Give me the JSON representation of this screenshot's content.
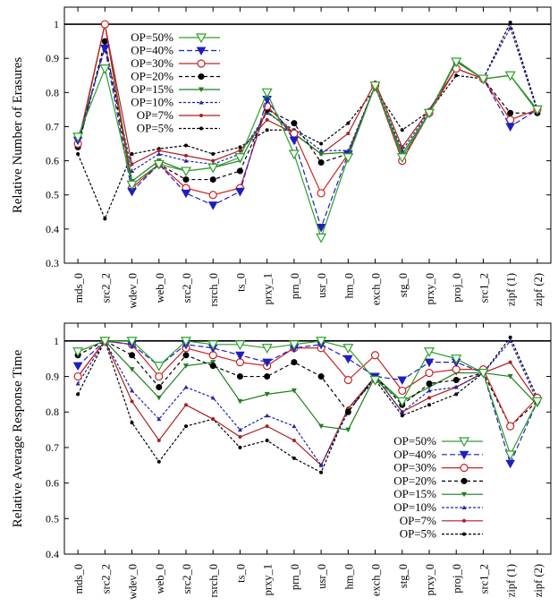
{
  "series_styles": [
    {
      "name": "OP=50%",
      "color": "#2ca02c",
      "dash": "",
      "marker": "triangle-down-open"
    },
    {
      "name": "OP=40%",
      "color": "#1f1fbf",
      "dash": "6,3",
      "marker": "triangle-down-filled"
    },
    {
      "name": "OP=30%",
      "color": "#cc2222",
      "dash": "",
      "marker": "circle-open"
    },
    {
      "name": "OP=20%",
      "color": "#000000",
      "dash": "4,3",
      "marker": "circle-filled"
    },
    {
      "name": "OP=15%",
      "color": "#1f7f1f",
      "dash": "",
      "marker": "triangle-down-small"
    },
    {
      "name": "OP=10%",
      "color": "#2222aa",
      "dash": "3,2",
      "marker": "triangle-small"
    },
    {
      "name": "OP=7%",
      "color": "#aa2222",
      "dash": "",
      "marker": "dot"
    },
    {
      "name": "OP=5%",
      "color": "#000000",
      "dash": "3,2",
      "marker": "dot"
    }
  ],
  "chart_data": [
    {
      "type": "line",
      "title": "",
      "ylabel": "Relative Number of Erasures",
      "xlabel": "",
      "ylim": [
        0.3,
        1.05
      ],
      "yticks": [
        "0.3",
        "0.4",
        "0.5",
        "0.6",
        "0.7",
        "0.8",
        "0.9",
        "1"
      ],
      "reference_line": 1.0,
      "grid": false,
      "legend_position": "top-left",
      "categories": [
        "mds_0",
        "src2_2",
        "wdev_0",
        "web_0",
        "src2_0",
        "rsrch_0",
        "ts_0",
        "prxy_1",
        "prn_0",
        "usr_0",
        "hm_0",
        "exch_0",
        "stg_0",
        "prxy_0",
        "proj_0",
        "src1_2",
        "zipf (1)",
        "zipf (2)"
      ],
      "series": [
        {
          "name": "OP=50%",
          "values": [
            0.67,
            0.87,
            0.53,
            0.59,
            0.57,
            0.58,
            0.61,
            0.8,
            0.62,
            0.375,
            0.61,
            0.82,
            0.61,
            0.74,
            0.89,
            0.84,
            0.85,
            0.75
          ]
        },
        {
          "name": "OP=40%",
          "values": [
            0.66,
            0.93,
            0.51,
            0.59,
            0.505,
            0.47,
            0.51,
            0.78,
            0.66,
            0.405,
            0.62,
            0.82,
            0.61,
            0.74,
            0.89,
            0.84,
            0.7,
            0.75
          ]
        },
        {
          "name": "OP=30%",
          "values": [
            0.65,
            1.0,
            0.52,
            0.59,
            0.52,
            0.5,
            0.52,
            0.76,
            0.68,
            0.505,
            0.62,
            0.82,
            0.6,
            0.74,
            0.87,
            0.84,
            0.72,
            0.75
          ]
        },
        {
          "name": "OP=20%",
          "values": [
            0.64,
            0.95,
            0.53,
            0.59,
            0.545,
            0.545,
            0.57,
            0.75,
            0.71,
            0.595,
            0.62,
            0.82,
            0.6,
            0.74,
            0.89,
            0.84,
            0.74,
            0.74
          ]
        },
        {
          "name": "OP=15%",
          "values": [
            0.64,
            1.0,
            0.54,
            0.6,
            0.57,
            0.58,
            0.6,
            0.745,
            0.68,
            0.62,
            0.625,
            0.82,
            0.62,
            0.74,
            0.895,
            0.84,
            0.85,
            0.745
          ]
        },
        {
          "name": "OP=10%",
          "values": [
            0.64,
            0.94,
            0.57,
            0.62,
            0.6,
            0.59,
            0.62,
            0.74,
            0.69,
            0.63,
            0.63,
            0.82,
            0.63,
            0.745,
            0.89,
            0.84,
            0.99,
            0.745
          ]
        },
        {
          "name": "OP=7%",
          "values": [
            0.64,
            1.0,
            0.59,
            0.63,
            0.615,
            0.6,
            0.63,
            0.72,
            0.68,
            0.62,
            0.68,
            0.83,
            0.64,
            0.75,
            0.87,
            0.84,
            0.85,
            0.745
          ]
        },
        {
          "name": "OP=5%",
          "values": [
            0.62,
            0.43,
            0.62,
            0.635,
            0.645,
            0.62,
            0.64,
            0.69,
            0.69,
            0.65,
            0.71,
            0.81,
            0.69,
            0.745,
            0.85,
            0.84,
            1.005,
            0.75
          ]
        }
      ]
    },
    {
      "type": "line",
      "title": "",
      "ylabel": "Relative Average Response Time",
      "xlabel": "",
      "ylim": [
        0.4,
        1.05
      ],
      "yticks": [
        "0.4",
        "0.5",
        "0.6",
        "0.7",
        "0.8",
        "0.9",
        "1"
      ],
      "reference_line": 1.0,
      "grid": false,
      "legend_position": "bottom-right",
      "categories": [
        "mds_0",
        "src2_2",
        "wdev_0",
        "web_0",
        "src2_0",
        "rsrch_0",
        "ts_0",
        "prxy_1",
        "prn_0",
        "usr_0",
        "hm_0",
        "exch_0",
        "stg_0",
        "prxy_0",
        "proj_0",
        "src1_2",
        "zipf (1)",
        "zipf (2)"
      ],
      "series": [
        {
          "name": "OP=50%",
          "values": [
            0.97,
            1.0,
            1.0,
            0.93,
            1.0,
            0.99,
            0.99,
            0.98,
            0.99,
            1.0,
            0.98,
            0.89,
            0.83,
            0.97,
            0.95,
            0.91,
            0.68,
            0.83
          ]
        },
        {
          "name": "OP=40%",
          "values": [
            0.93,
            1.0,
            0.99,
            0.93,
            0.99,
            0.98,
            0.96,
            0.94,
            0.98,
            0.99,
            0.95,
            0.9,
            0.89,
            0.94,
            0.94,
            0.91,
            0.655,
            0.83
          ]
        },
        {
          "name": "OP=30%",
          "values": [
            0.9,
            1.0,
            0.99,
            0.9,
            0.98,
            0.96,
            0.94,
            0.93,
            0.98,
            0.98,
            0.89,
            0.96,
            0.86,
            0.91,
            0.92,
            0.92,
            0.76,
            0.84
          ]
        },
        {
          "name": "OP=20%",
          "values": [
            0.96,
            1.0,
            0.96,
            0.87,
            0.96,
            0.93,
            0.9,
            0.9,
            0.94,
            0.9,
            0.8,
            0.9,
            0.82,
            0.88,
            0.89,
            0.91,
            0.76,
            0.83
          ]
        },
        {
          "name": "OP=15%",
          "values": [
            0.97,
            1.0,
            0.92,
            0.84,
            0.93,
            0.94,
            0.83,
            0.85,
            0.86,
            0.76,
            0.75,
            0.9,
            0.83,
            0.87,
            0.91,
            0.91,
            0.9,
            0.82
          ]
        },
        {
          "name": "OP=10%",
          "values": [
            0.88,
            1.0,
            0.86,
            0.78,
            0.87,
            0.84,
            0.75,
            0.79,
            0.76,
            0.65,
            0.8,
            0.9,
            0.8,
            0.86,
            0.87,
            0.91,
            1.0,
            0.83
          ]
        },
        {
          "name": "OP=7%",
          "values": [
            0.9,
            1.0,
            0.83,
            0.72,
            0.82,
            0.78,
            0.73,
            0.76,
            0.72,
            0.65,
            0.81,
            0.9,
            0.8,
            0.84,
            0.87,
            0.91,
            0.94,
            0.83
          ]
        },
        {
          "name": "OP=5%",
          "values": [
            0.85,
            1.0,
            0.77,
            0.66,
            0.76,
            0.78,
            0.7,
            0.72,
            0.67,
            0.63,
            0.81,
            0.89,
            0.79,
            0.82,
            0.85,
            0.91,
            1.01,
            0.84
          ]
        }
      ]
    }
  ]
}
